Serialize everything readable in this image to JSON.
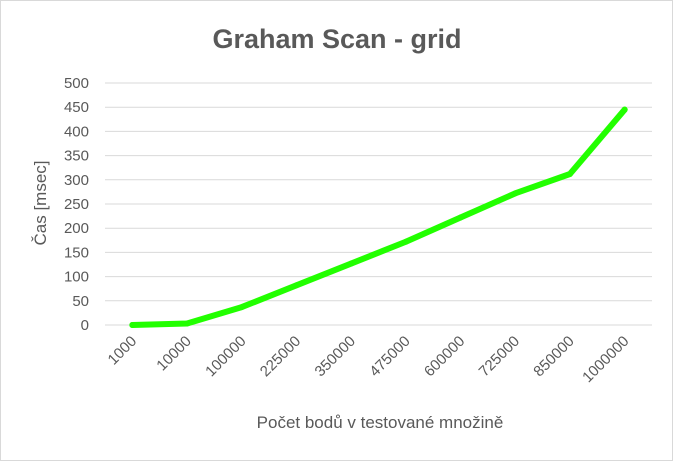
{
  "chart_data": {
    "type": "line",
    "title": "Graham Scan - grid",
    "xlabel": "Počet bodů v testované množině",
    "ylabel": "Čas [msec]",
    "categories": [
      "1000",
      "10000",
      "100000",
      "225000",
      "350000",
      "475000",
      "600000",
      "725000",
      "850000",
      "1000000"
    ],
    "y_ticks": [
      "0",
      "50",
      "100",
      "150",
      "200",
      "250",
      "300",
      "350",
      "400",
      "450",
      "500"
    ],
    "ylim": [
      0,
      500
    ],
    "grid": true,
    "legend": "none",
    "series": [
      {
        "color": "#22ff00",
        "values": [
          0,
          3,
          37,
          82,
          127,
          172,
          222,
          272,
          312,
          445
        ]
      }
    ]
  }
}
